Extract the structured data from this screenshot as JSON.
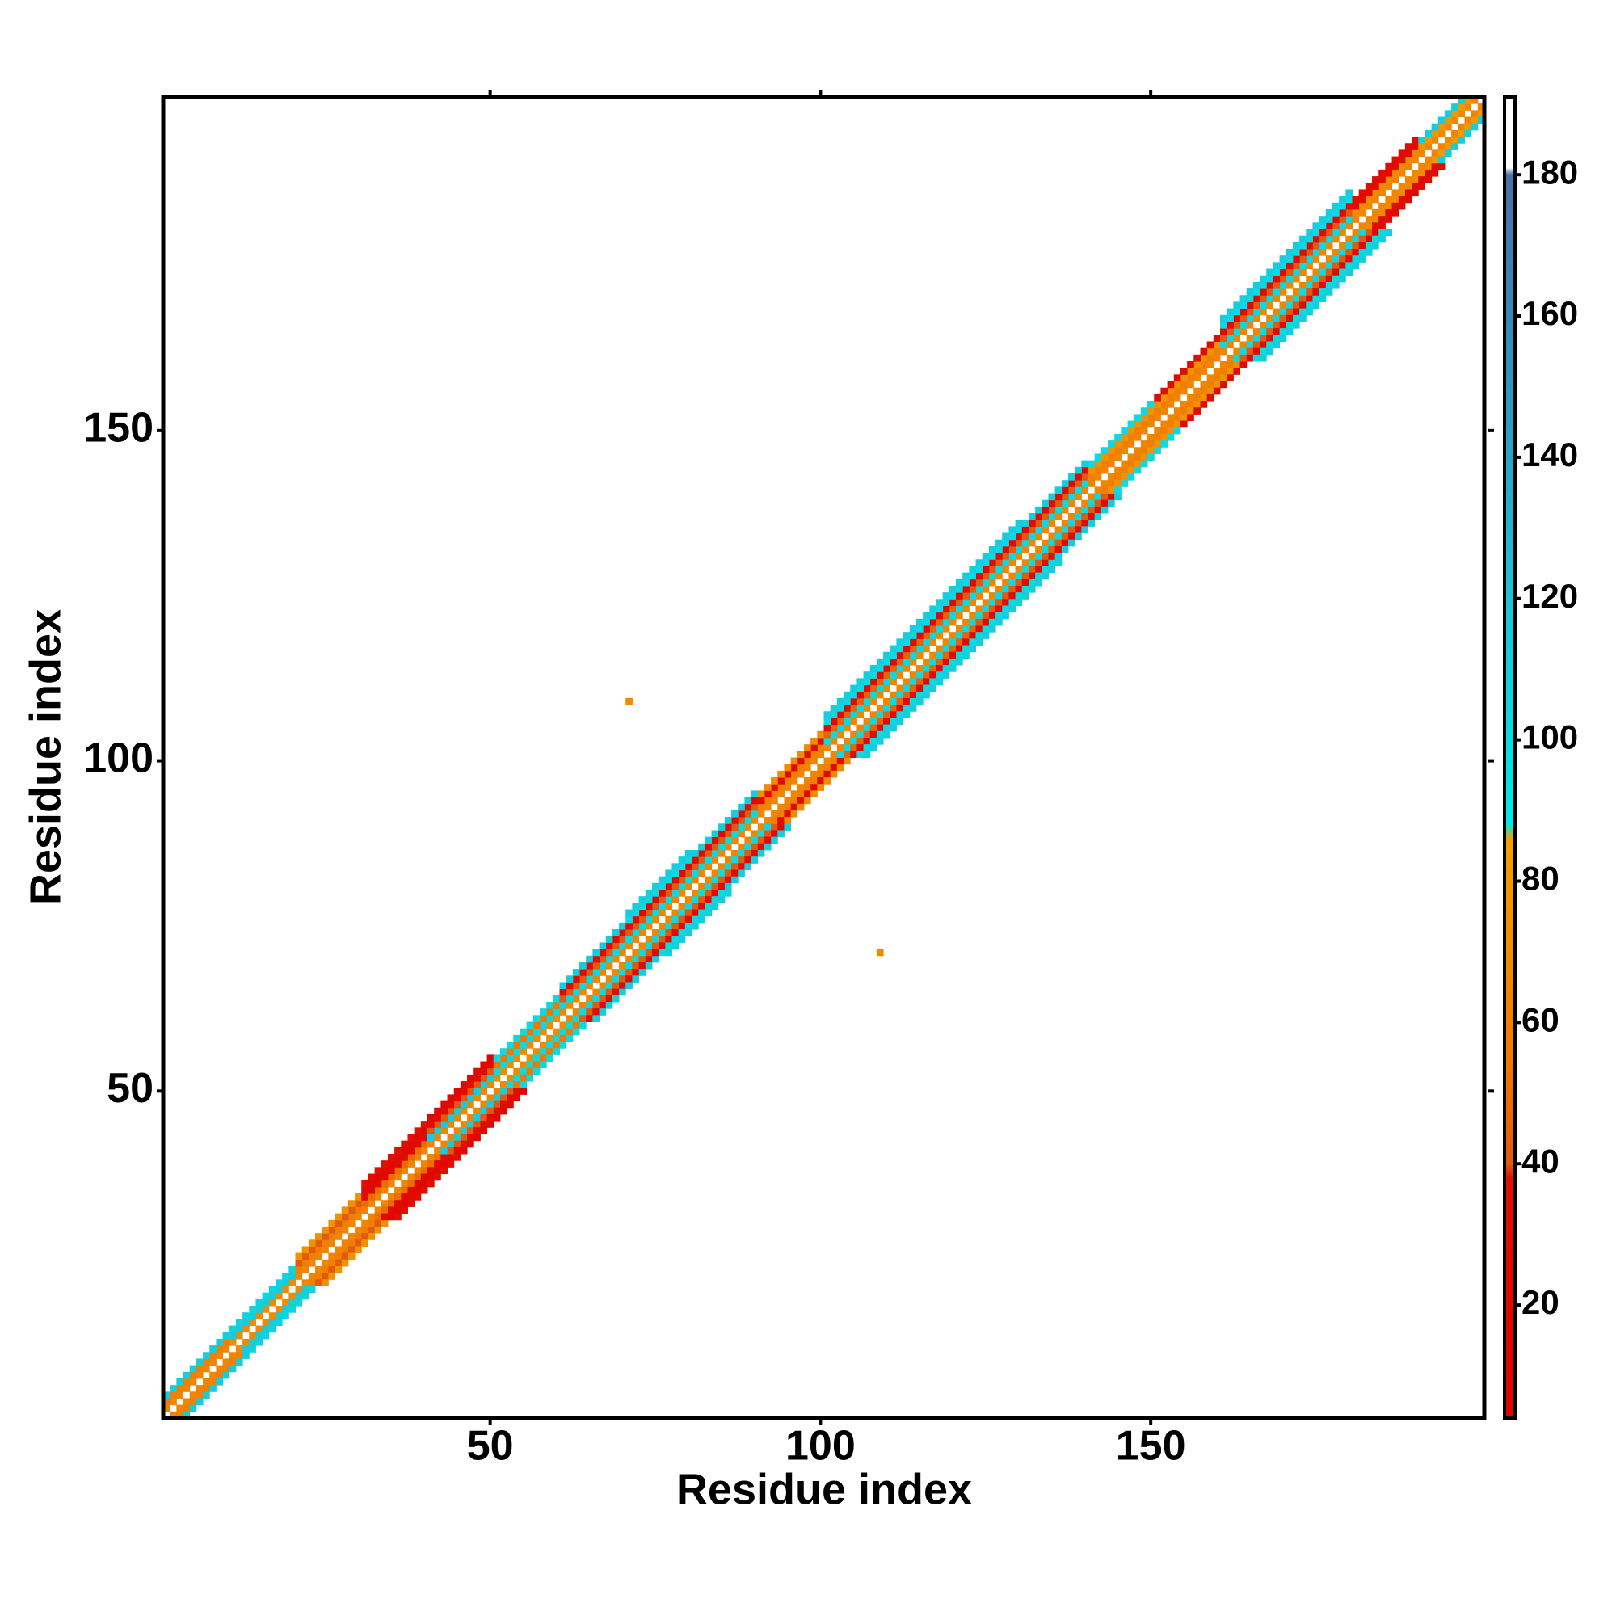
{
  "chart_data": {
    "type": "heatmap",
    "xlabel": "Residue index",
    "ylabel": "Residue index",
    "xlim": [
      0.5,
      200.5
    ],
    "ylim": [
      0.5,
      200.5
    ],
    "xticks": [
      50,
      100,
      150
    ],
    "yticks": [
      50,
      100,
      150
    ],
    "symmetric": true,
    "offsets": [
      1,
      2,
      3,
      4,
      5,
      6
    ],
    "segments": [
      {
        "start": 1,
        "end": 10,
        "values": [
          65,
          60,
          110
        ]
      },
      {
        "start": 11,
        "end": 20,
        "values": [
          70,
          110,
          105
        ]
      },
      {
        "start": 21,
        "end": 30,
        "values": [
          65,
          60,
          40,
          75
        ]
      },
      {
        "start": 31,
        "end": 40,
        "values": [
          65,
          50,
          25,
          20,
          35
        ]
      },
      {
        "start": 41,
        "end": 50,
        "values": [
          65,
          110,
          40,
          30,
          20
        ]
      },
      {
        "start": 51,
        "end": 60,
        "values": [
          70,
          100,
          55,
          100
        ]
      },
      {
        "start": 61,
        "end": 70,
        "values": [
          65,
          100,
          40,
          25,
          110
        ]
      },
      {
        "start": 71,
        "end": 80,
        "values": [
          65,
          100,
          40,
          25,
          100,
          110
        ]
      },
      {
        "start": 81,
        "end": 90,
        "values": [
          65,
          100,
          40,
          25,
          110
        ]
      },
      {
        "start": 91,
        "end": 100,
        "values": [
          65,
          60,
          30,
          70
        ]
      },
      {
        "start": 101,
        "end": 110,
        "values": [
          65,
          100,
          45,
          25,
          100,
          110
        ]
      },
      {
        "start": 111,
        "end": 120,
        "values": [
          65,
          100,
          45,
          25,
          100,
          110
        ]
      },
      {
        "start": 121,
        "end": 130,
        "values": [
          65,
          100,
          40,
          25,
          100,
          110
        ]
      },
      {
        "start": 131,
        "end": 140,
        "values": [
          65,
          100,
          40,
          25,
          110
        ]
      },
      {
        "start": 141,
        "end": 150,
        "values": [
          65,
          60,
          75,
          100
        ]
      },
      {
        "start": 151,
        "end": 160,
        "values": [
          65,
          60,
          75,
          30
        ]
      },
      {
        "start": 161,
        "end": 170,
        "values": [
          65,
          100,
          40,
          25,
          100,
          110
        ]
      },
      {
        "start": 171,
        "end": 180,
        "values": [
          65,
          100,
          40,
          25,
          100,
          110
        ]
      },
      {
        "start": 181,
        "end": 190,
        "values": [
          65,
          70,
          30,
          30
        ]
      },
      {
        "start": 191,
        "end": 200,
        "values": [
          65,
          80,
          110
        ]
      }
    ],
    "points": [
      {
        "x": 71,
        "y": 109,
        "value": 70
      },
      {
        "x": 109,
        "y": 71,
        "value": 70
      }
    ],
    "clim": [
      4,
      191
    ],
    "cticks": [
      20,
      40,
      60,
      80,
      100,
      120,
      140,
      160,
      180
    ],
    "colorscale": [
      [
        4,
        "#e00000"
      ],
      [
        38,
        "#e01000"
      ],
      [
        40,
        "#e05a10"
      ],
      [
        55,
        "#f07800"
      ],
      [
        86,
        "#f0a000"
      ],
      [
        88,
        "#00e8e8"
      ],
      [
        120,
        "#20c0d8"
      ],
      [
        150,
        "#3094c0"
      ],
      [
        180,
        "#4a70a8"
      ],
      [
        181,
        "#ffffff"
      ],
      [
        191,
        "#ffffff"
      ]
    ]
  }
}
